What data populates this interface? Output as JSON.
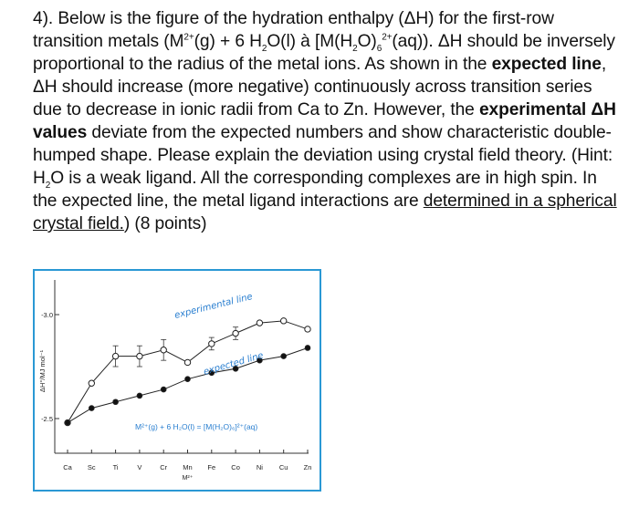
{
  "question": {
    "s1": "4). Below is the figure of the hydration enthalpy (ΔH) for the first-row transition metals (M",
    "s1_sup": "2+",
    "s2": "(g) + 6 H",
    "s2_sub": "2",
    "s3": "O(l) à [M(H",
    "s3_sub": "2",
    "s4": "O)",
    "s4_sub": "6",
    "s4_sup": "2+",
    "s5": "(aq)). ΔH should be inversely proportional to the radius of the metal ions. As shown in the ",
    "bold1": "expected line",
    "s6": ", ΔH should increase (more negative) continuously across transition series due to decrease in ionic radii from Ca to Zn. However, the ",
    "bold2": "experimental ΔH values",
    "s7": " deviate from the expected numbers and show characteristic double-humped shape. Please explain the deviation using crystal field theory. (Hint: H",
    "s7_sub": "2",
    "s8": "O is a weak ligand. All the corresponding complexes are in high spin. In the expected line, the metal ligand interactions are ",
    "underlined": "determined in a spherical crystal field.",
    "s9": ") (8 points)"
  },
  "figure": {
    "chart_data": {
      "type": "line",
      "categories": [
        "Ca",
        "Sc",
        "Ti",
        "V",
        "Cr",
        "Mn",
        "Fe",
        "Co",
        "Ni",
        "Cu",
        "Zn"
      ],
      "xlabel_sub": "M²⁺",
      "ylabel": "ΔH°/MJ mol⁻¹",
      "yticks": [
        "-3.0",
        "-2.5"
      ],
      "ylim": [
        -2.45,
        -3.1
      ],
      "series": [
        {
          "name": "experimental line",
          "marker": "open-circle",
          "values": [
            -2.48,
            -2.67,
            -2.8,
            -2.8,
            -2.83,
            -2.77,
            -2.86,
            -2.91,
            -2.96,
            -2.97,
            -2.93
          ],
          "errors": [
            0,
            0,
            0.05,
            0.05,
            0.05,
            0,
            0.03,
            0.03,
            0,
            0,
            0
          ]
        },
        {
          "name": "expected line",
          "marker": "filled-circle",
          "values": [
            -2.48,
            -2.55,
            -2.58,
            -2.61,
            -2.64,
            -2.69,
            -2.72,
            -2.74,
            -2.78,
            -2.8,
            -2.84
          ]
        }
      ],
      "annotation": "M²⁺(g) + 6 H₂O(l) = [M(H₂O)₆]²⁺(aq)",
      "grid": false,
      "legend": "inline labels"
    }
  }
}
